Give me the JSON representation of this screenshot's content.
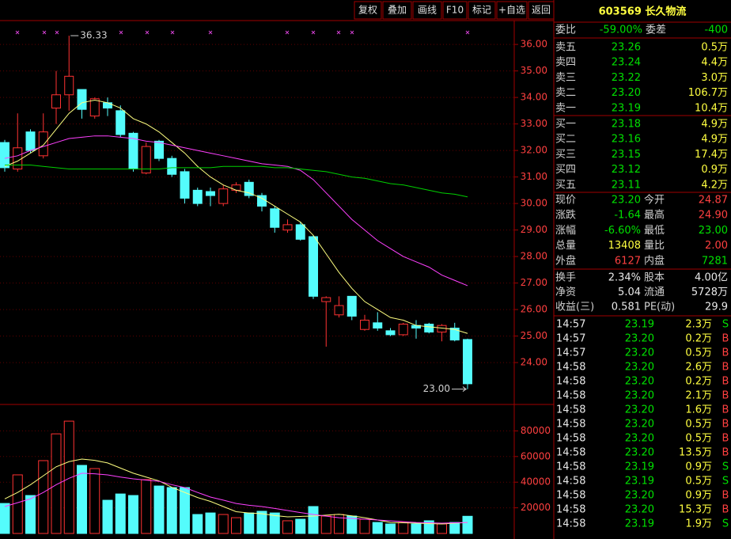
{
  "toolbar": [
    "复权",
    "叠加",
    "画线",
    "F10",
    "标记",
    "+自选",
    "返回"
  ],
  "title": "603569 长久物流",
  "order_book": {
    "ratio_label": "委比",
    "ratio": "-59.00%",
    "diff_label": "委差",
    "diff": "-400",
    "asks": [
      [
        "卖五",
        "23.26",
        "0.5万"
      ],
      [
        "卖四",
        "23.24",
        "4.4万"
      ],
      [
        "卖三",
        "23.22",
        "3.0万"
      ],
      [
        "卖二",
        "23.20",
        "106.7万"
      ],
      [
        "卖一",
        "23.19",
        "10.4万"
      ]
    ],
    "bids": [
      [
        "买一",
        "23.18",
        "4.9万"
      ],
      [
        "买二",
        "23.16",
        "4.9万"
      ],
      [
        "买三",
        "23.15",
        "17.4万"
      ],
      [
        "买四",
        "23.12",
        "0.9万"
      ],
      [
        "买五",
        "23.11",
        "4.2万"
      ]
    ]
  },
  "stats": {
    "rows": [
      [
        "现价",
        "23.20",
        "今开",
        "24.87"
      ],
      [
        "涨跌",
        "-1.64",
        "最高",
        "24.90"
      ],
      [
        "涨幅",
        "-6.60%",
        "最低",
        "23.00"
      ],
      [
        "总量",
        "13408",
        "量比",
        "2.00"
      ],
      [
        "外盘",
        "6127",
        "内盘",
        "7281"
      ]
    ],
    "value_colors": [
      [
        "#00e000",
        "#ff4040"
      ],
      [
        "#00e000",
        "#ff4040"
      ],
      [
        "#00e000",
        "#00e000"
      ],
      [
        "#ffff40",
        "#ff4040"
      ],
      [
        "#ff4040",
        "#00e000"
      ]
    ]
  },
  "fundamentals": [
    [
      "换手",
      "2.34%",
      "股本",
      "4.00亿"
    ],
    [
      "净资",
      "5.04",
      "流通",
      "5728万"
    ],
    [
      "收益(三)",
      "0.581",
      "PE(动)",
      "29.9"
    ]
  ],
  "trades": [
    [
      "14:57",
      "23.19",
      "2.3万",
      "S"
    ],
    [
      "14:57",
      "23.20",
      "0.2万",
      "B"
    ],
    [
      "14:57",
      "23.20",
      "0.5万",
      "B"
    ],
    [
      "14:58",
      "23.20",
      "2.6万",
      "B"
    ],
    [
      "14:58",
      "23.20",
      "0.2万",
      "B"
    ],
    [
      "14:58",
      "23.20",
      "2.1万",
      "B"
    ],
    [
      "14:58",
      "23.20",
      "1.6万",
      "B"
    ],
    [
      "14:58",
      "23.20",
      "0.5万",
      "B"
    ],
    [
      "14:58",
      "23.20",
      "0.5万",
      "B"
    ],
    [
      "14:58",
      "23.20",
      "13.5万",
      "B"
    ],
    [
      "14:58",
      "23.19",
      "0.9万",
      "S"
    ],
    [
      "14:58",
      "23.19",
      "0.5万",
      "S"
    ],
    [
      "14:58",
      "23.20",
      "0.9万",
      "B"
    ],
    [
      "14:58",
      "23.20",
      "15.3万",
      "B"
    ],
    [
      "14:58",
      "23.19",
      "1.9万",
      "S"
    ]
  ],
  "chart_data": [
    {
      "type": "candlestick",
      "up_color": "#ff3232",
      "down_color": "#54fcfc",
      "open": [
        32.3,
        31.3,
        32.7,
        31.8,
        33.6,
        34.1,
        34.3,
        33.3,
        33.8,
        33.5,
        32.65,
        31.15,
        32.35,
        31.7,
        31.2,
        30.5,
        30.45,
        30.0,
        30.5,
        30.8,
        30.3,
        29.8,
        29.0,
        29.2,
        28.75,
        26.3,
        25.8,
        26.5,
        25.25,
        25.5,
        25.2,
        25.05,
        25.4,
        25.45,
        25.15,
        25.3,
        24.87
      ],
      "high": [
        32.4,
        33.4,
        32.8,
        33.4,
        35.0,
        36.33,
        34.3,
        34.0,
        34.0,
        33.7,
        32.7,
        32.3,
        32.4,
        31.8,
        31.3,
        30.6,
        30.6,
        30.7,
        30.8,
        30.9,
        30.4,
        29.9,
        29.4,
        29.3,
        28.8,
        26.5,
        26.5,
        26.5,
        25.8,
        25.9,
        25.3,
        25.5,
        25.6,
        25.5,
        25.45,
        25.5,
        24.9
      ],
      "low": [
        31.2,
        31.2,
        31.9,
        31.7,
        33.0,
        33.5,
        33.2,
        33.2,
        33.3,
        32.5,
        31.2,
        31.1,
        31.6,
        31.0,
        30.0,
        29.9,
        29.9,
        29.9,
        30.4,
        30.2,
        29.7,
        28.9,
        28.9,
        28.6,
        26.4,
        24.6,
        25.7,
        25.6,
        25.2,
        25.2,
        25.0,
        25.0,
        24.9,
        25.1,
        24.8,
        24.8,
        23
      ],
      "close": [
        31.35,
        32.1,
        32.0,
        32.7,
        34.1,
        34.8,
        33.55,
        33.95,
        33.6,
        32.6,
        31.3,
        32.15,
        31.7,
        31.1,
        30.2,
        30.0,
        30.3,
        30.55,
        30.7,
        30.3,
        29.9,
        29.1,
        29.2,
        28.65,
        26.5,
        26.45,
        26.15,
        25.75,
        25.6,
        25.3,
        25.05,
        25.45,
        25.3,
        25.15,
        25.4,
        24.85,
        23.2
      ],
      "series": [
        {
          "color": "#ffff80",
          "values": [
            31.4,
            31.6,
            31.9,
            32.2,
            32.8,
            33.4,
            33.8,
            33.9,
            33.8,
            33.6,
            33.2,
            33.0,
            32.7,
            32.3,
            31.9,
            31.4,
            31.0,
            30.7,
            30.5,
            30.4,
            30.2,
            29.9,
            29.6,
            29.3,
            28.8,
            28.1,
            27.4,
            26.8,
            26.3,
            26.0,
            25.7,
            25.6,
            25.4,
            25.35,
            25.3,
            25.25,
            25.1
          ]
        },
        {
          "color": "#ff40ff",
          "values": [
            31.7,
            31.8,
            32.0,
            32.15,
            32.3,
            32.45,
            32.5,
            32.55,
            32.55,
            32.5,
            32.45,
            32.35,
            32.3,
            32.2,
            32.1,
            32.0,
            31.9,
            31.8,
            31.7,
            31.6,
            31.5,
            31.45,
            31.4,
            31.25,
            30.9,
            30.4,
            29.9,
            29.4,
            29.0,
            28.6,
            28.3,
            28.0,
            27.8,
            27.6,
            27.3,
            27.1,
            26.9
          ]
        },
        {
          "color": "#00d000",
          "values": [
            31.45,
            31.45,
            31.45,
            31.4,
            31.35,
            31.3,
            31.3,
            31.3,
            31.3,
            31.3,
            31.3,
            31.3,
            31.3,
            31.35,
            31.35,
            31.35,
            31.35,
            31.4,
            31.4,
            31.4,
            31.4,
            31.35,
            31.35,
            31.3,
            31.25,
            31.2,
            31.1,
            31.0,
            30.95,
            30.85,
            30.75,
            30.7,
            30.6,
            30.5,
            30.4,
            30.35,
            30.25
          ]
        }
      ],
      "annotations": [
        {
          "label": "36.33"
        },
        {
          "label": "23.00"
        }
      ],
      "ylim": [
        22.45,
        36.78
      ],
      "yticks": [
        {
          "value": 36,
          "label": "36.00"
        },
        {
          "value": 35,
          "label": "35.00"
        },
        {
          "value": 34,
          "label": "34.00"
        },
        {
          "value": 33,
          "label": "33.00"
        },
        {
          "value": 32,
          "label": "32.00"
        },
        {
          "value": 31,
          "label": "31.00"
        },
        {
          "value": 30,
          "label": "30.00"
        },
        {
          "value": 29,
          "label": "29.00"
        },
        {
          "value": 28,
          "label": "28.00"
        },
        {
          "value": 27,
          "label": "27.00"
        },
        {
          "value": 26,
          "label": "26.00"
        },
        {
          "value": 25,
          "label": "25.00"
        },
        {
          "value": 24,
          "label": "24.00"
        }
      ],
      "grid": true
    },
    {
      "type": "bar",
      "values": [
        23400,
        45700,
        29600,
        56800,
        77700,
        87600,
        53100,
        50600,
        25900,
        30800,
        29600,
        42000,
        37000,
        35800,
        35800,
        14800,
        16000,
        14800,
        12300,
        16000,
        17300,
        16000,
        9900,
        11100,
        21000,
        13600,
        14800,
        13600,
        11100,
        8600,
        7400,
        8600,
        7400,
        9900,
        7400,
        8600,
        13408
      ],
      "series": [
        {
          "color": "#ffff80",
          "values": [
            27000,
            32000,
            38000,
            45000,
            52000,
            56000,
            58000,
            57000,
            55000,
            51000,
            47000,
            44000,
            41000,
            36000,
            32000,
            28000,
            25000,
            21000,
            17000,
            16000,
            15400,
            14000,
            13000,
            13300,
            13600,
            14300,
            15000,
            13700,
            12300,
            10500,
            8600,
            8300,
            8000,
            7700,
            7400,
            8000,
            8600
          ]
        },
        {
          "color": "#ff40ff",
          "values": [
            21000,
            24000,
            27000,
            32000,
            38000,
            43000,
            47000,
            46500,
            45700,
            44000,
            42600,
            41600,
            40700,
            38000,
            35800,
            32000,
            28400,
            26000,
            23400,
            22000,
            21000,
            19500,
            17900,
            16300,
            14800,
            13500,
            12300,
            11700,
            11100,
            10500,
            9900,
            9200,
            8600,
            8300,
            8000,
            8300,
            8600
          ]
        }
      ],
      "ylim": [
        0,
        100000
      ],
      "yticks": [
        20000,
        40000,
        60000,
        80000
      ],
      "grid": true
    }
  ]
}
